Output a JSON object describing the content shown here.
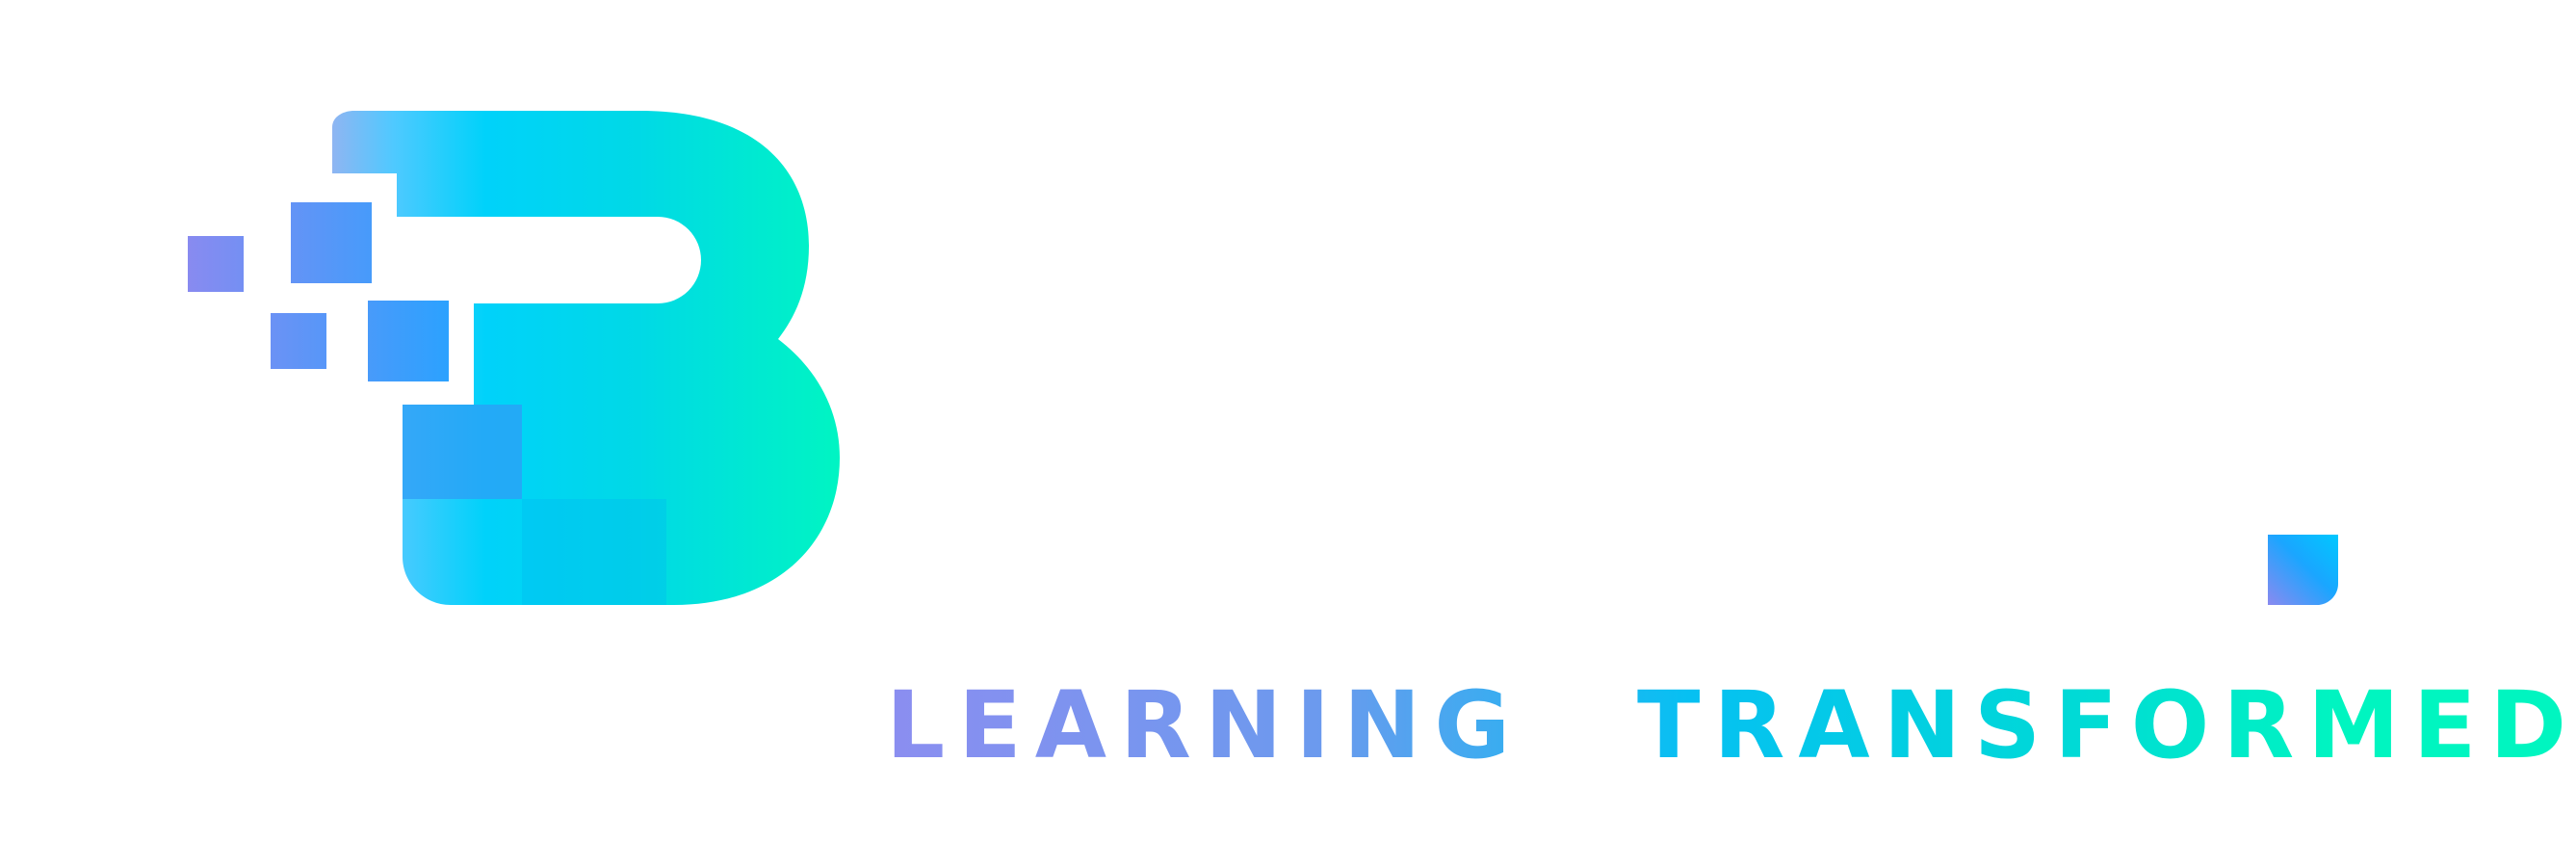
{
  "brand": {
    "logo_letter": "B",
    "tagline": {
      "word_1": "LEARNING",
      "word_2": "TRANSFORMED"
    }
  },
  "colors": {
    "purple": "#8b8ef0",
    "blue": "#1aa6ff",
    "cyan": "#00d4f5",
    "teal": "#00f5c0"
  },
  "icons": {
    "pixel_squares": "pixel-squares",
    "period_square": "square-dot"
  }
}
